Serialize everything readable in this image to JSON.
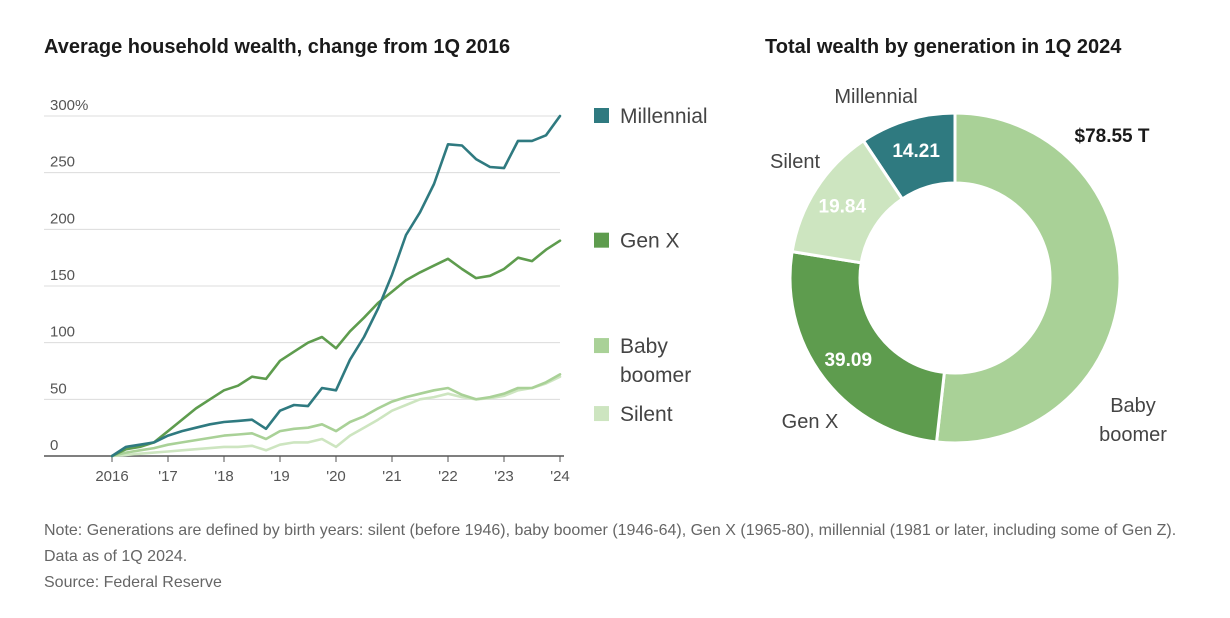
{
  "colors": {
    "millennial": "#2f7a80",
    "gen_x": "#5e9c4e",
    "baby_boomer": "#a9d197",
    "silent": "#cde5c0",
    "grid": "#dcdcdc",
    "axis": "#555555"
  },
  "chart_data": [
    {
      "type": "line",
      "title": "Average household wealth, change from 1Q 2016",
      "xlabel": "",
      "ylabel": "",
      "y_unit_suffix": "%",
      "ylim": [
        0,
        300
      ],
      "yticks": [
        "300%",
        "250",
        "200",
        "150",
        "100",
        "50",
        "0"
      ],
      "xlim": [
        2016,
        2024
      ],
      "xticks": [
        {
          "value": 2016,
          "label": "2016"
        },
        {
          "value": 2017,
          "label": "'17"
        },
        {
          "value": 2018,
          "label": "'18"
        },
        {
          "value": 2019,
          "label": "'19"
        },
        {
          "value": 2020,
          "label": "'20"
        },
        {
          "value": 2021,
          "label": "'21"
        },
        {
          "value": 2022,
          "label": "'22"
        },
        {
          "value": 2023,
          "label": "'23"
        },
        {
          "value": 2024,
          "label": "'24"
        }
      ],
      "legend_position": "right",
      "series": [
        {
          "name": "Millennial",
          "key": "millennial",
          "label_lines": [
            "Millennial"
          ],
          "x": [
            2016,
            2016.25,
            2016.5,
            2016.75,
            2017,
            2017.25,
            2017.5,
            2017.75,
            2018,
            2018.25,
            2018.5,
            2018.75,
            2019,
            2019.25,
            2019.5,
            2019.75,
            2020,
            2020.25,
            2020.5,
            2020.75,
            2021,
            2021.25,
            2021.5,
            2021.75,
            2022,
            2022.25,
            2022.5,
            2022.75,
            2023,
            2023.25,
            2023.5,
            2023.75,
            2024
          ],
          "values": [
            0,
            8,
            10,
            12,
            18,
            22,
            25,
            28,
            30,
            31,
            32,
            24,
            40,
            45,
            44,
            60,
            58,
            85,
            105,
            130,
            160,
            195,
            215,
            240,
            275,
            274,
            262,
            255,
            254,
            278,
            278,
            283,
            300
          ]
        },
        {
          "name": "Gen X",
          "key": "gen_x",
          "label_lines": [
            "Gen X"
          ],
          "x": [
            2016,
            2016.25,
            2016.5,
            2016.75,
            2017,
            2017.25,
            2017.5,
            2017.75,
            2018,
            2018.25,
            2018.5,
            2018.75,
            2019,
            2019.25,
            2019.5,
            2019.75,
            2020,
            2020.25,
            2020.5,
            2020.75,
            2021,
            2021.25,
            2021.5,
            2021.75,
            2022,
            2022.25,
            2022.5,
            2022.75,
            2023,
            2023.25,
            2023.5,
            2023.75,
            2024
          ],
          "values": [
            0,
            6,
            8,
            12,
            22,
            32,
            42,
            50,
            58,
            62,
            70,
            68,
            84,
            92,
            100,
            105,
            95,
            110,
            122,
            135,
            145,
            155,
            162,
            168,
            174,
            165,
            157,
            159,
            165,
            175,
            172,
            182,
            190
          ]
        },
        {
          "name": "Baby boomer",
          "key": "baby_boomer",
          "label_lines": [
            "Baby",
            "boomer"
          ],
          "x": [
            2016,
            2016.25,
            2016.5,
            2016.75,
            2017,
            2017.25,
            2017.5,
            2017.75,
            2018,
            2018.25,
            2018.5,
            2018.75,
            2019,
            2019.25,
            2019.5,
            2019.75,
            2020,
            2020.25,
            2020.5,
            2020.75,
            2021,
            2021.25,
            2021.5,
            2021.75,
            2022,
            2022.25,
            2022.5,
            2022.75,
            2023,
            2023.25,
            2023.5,
            2023.75,
            2024
          ],
          "values": [
            0,
            3,
            5,
            7,
            10,
            12,
            14,
            16,
            18,
            19,
            20,
            15,
            22,
            24,
            25,
            28,
            22,
            30,
            35,
            42,
            48,
            52,
            55,
            58,
            60,
            54,
            50,
            52,
            55,
            60,
            60,
            65,
            72
          ]
        },
        {
          "name": "Silent",
          "key": "silent",
          "label_lines": [
            "Silent"
          ],
          "x": [
            2016,
            2016.25,
            2016.5,
            2016.75,
            2017,
            2017.25,
            2017.5,
            2017.75,
            2018,
            2018.25,
            2018.5,
            2018.75,
            2019,
            2019.25,
            2019.5,
            2019.75,
            2020,
            2020.25,
            2020.5,
            2020.75,
            2021,
            2021.25,
            2021.5,
            2021.75,
            2022,
            2022.25,
            2022.5,
            2022.75,
            2023,
            2023.25,
            2023.5,
            2023.75,
            2024
          ],
          "values": [
            0,
            1,
            2,
            3,
            4,
            5,
            6,
            7,
            8,
            8,
            9,
            5,
            10,
            12,
            12,
            15,
            8,
            18,
            25,
            32,
            40,
            45,
            50,
            52,
            55,
            52,
            50,
            51,
            53,
            58,
            60,
            64,
            70
          ]
        }
      ]
    },
    {
      "type": "pie",
      "title": "Total wealth by generation in 1Q 2024",
      "total_label": "$78.55 T",
      "slices": [
        {
          "name": "Millennial",
          "key": "millennial",
          "value": 14.21,
          "value_label": "14.21",
          "label_lines": [
            "Millennial"
          ],
          "label_outside": true
        },
        {
          "name": "Baby boomer",
          "key": "baby_boomer",
          "value": 78.55,
          "value_label": "",
          "label_lines": [
            "Baby",
            "boomer"
          ],
          "label_outside": true
        },
        {
          "name": "Gen X",
          "key": "gen_x",
          "value": 39.09,
          "value_label": "39.09",
          "label_lines": [
            "Gen X"
          ],
          "label_outside": true
        },
        {
          "name": "Silent",
          "key": "silent",
          "value": 19.84,
          "value_label": "19.84",
          "label_lines": [
            "Silent"
          ],
          "label_outside": true
        }
      ]
    }
  ],
  "note": "Note: Generations are defined by birth years: silent (before 1946), baby boomer (1946-64), Gen X (1965-80), millennial (1981 or later, including some of Gen Z). Data as of 1Q 2024.",
  "source": "Source: Federal Reserve"
}
